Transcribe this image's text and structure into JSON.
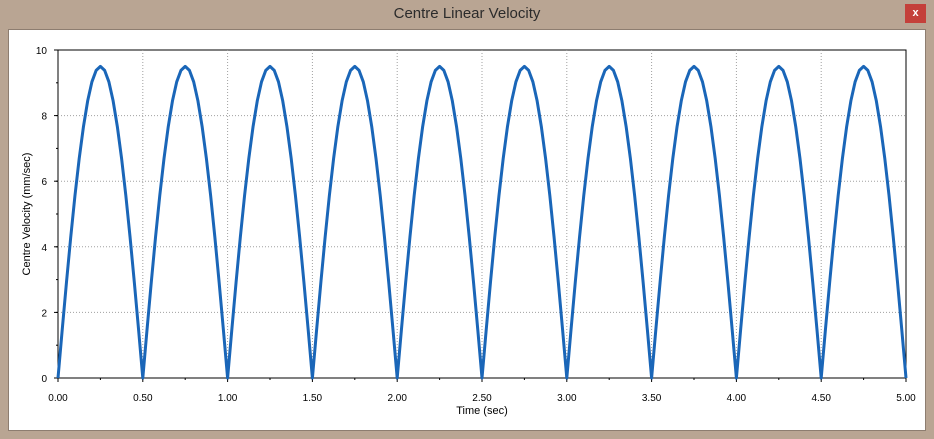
{
  "window": {
    "title": "Centre Linear Velocity",
    "close_label": "x"
  },
  "chart_data": {
    "type": "line",
    "title": "",
    "xlabel": "Time (sec)",
    "ylabel": "Centre Velocity (mm/sec)",
    "xlim": [
      0,
      5
    ],
    "ylim": [
      0,
      10
    ],
    "grid": true,
    "legend": "none",
    "x_ticks": [
      "0.00",
      "0.50",
      "1.00",
      "1.50",
      "2.00",
      "2.50",
      "3.00",
      "3.50",
      "4.00",
      "4.50",
      "5.00"
    ],
    "y_ticks": [
      "0",
      "2",
      "4",
      "6",
      "8",
      "10"
    ],
    "series": [
      {
        "color": "#1a66b8",
        "x": [
          0,
          0.025,
          0.05,
          0.075,
          0.1,
          0.125,
          0.15,
          0.175,
          0.2,
          0.225,
          0.25,
          0.275,
          0.3,
          0.325,
          0.35,
          0.375,
          0.4,
          0.425,
          0.45,
          0.475,
          0.5,
          0.525,
          0.55,
          0.575,
          0.6,
          0.625,
          0.65,
          0.675,
          0.7,
          0.725,
          0.75,
          0.775,
          0.8,
          0.825,
          0.85,
          0.875,
          0.9,
          0.925,
          0.95,
          0.975,
          1.0,
          1.025,
          1.05,
          1.075,
          1.1,
          1.125,
          1.15,
          1.175,
          1.2,
          1.225,
          1.25,
          1.275,
          1.3,
          1.325,
          1.35,
          1.375,
          1.4,
          1.425,
          1.45,
          1.475,
          1.5,
          1.525,
          1.55,
          1.575,
          1.6,
          1.625,
          1.65,
          1.675,
          1.7,
          1.725,
          1.75,
          1.775,
          1.8,
          1.825,
          1.85,
          1.875,
          1.9,
          1.925,
          1.95,
          1.975,
          2.0,
          2.025,
          2.05,
          2.075,
          2.1,
          2.125,
          2.15,
          2.175,
          2.2,
          2.225,
          2.25,
          2.275,
          2.3,
          2.325,
          2.35,
          2.375,
          2.4,
          2.425,
          2.45,
          2.475,
          2.5,
          2.525,
          2.55,
          2.575,
          2.6,
          2.625,
          2.65,
          2.675,
          2.7,
          2.725,
          2.75,
          2.775,
          2.8,
          2.825,
          2.85,
          2.875,
          2.9,
          2.925,
          2.95,
          2.975,
          3.0,
          3.025,
          3.05,
          3.075,
          3.1,
          3.125,
          3.15,
          3.175,
          3.2,
          3.225,
          3.25,
          3.275,
          3.3,
          3.325,
          3.35,
          3.375,
          3.4,
          3.425,
          3.45,
          3.475,
          3.5,
          3.525,
          3.55,
          3.575,
          3.6,
          3.625,
          3.65,
          3.675,
          3.7,
          3.725,
          3.75,
          3.775,
          3.8,
          3.825,
          3.85,
          3.875,
          3.9,
          3.925,
          3.95,
          3.975,
          4.0,
          4.025,
          4.05,
          4.075,
          4.1,
          4.125,
          4.15,
          4.175,
          4.2,
          4.225,
          4.25,
          4.275,
          4.3,
          4.325,
          4.35,
          4.375,
          4.4,
          4.425,
          4.45,
          4.475,
          4.5,
          4.525,
          4.55,
          4.575,
          4.6,
          4.625,
          4.65,
          4.675,
          4.7,
          4.725,
          4.75,
          4.775,
          4.8,
          4.825,
          4.85,
          4.875,
          4.9,
          4.925,
          4.95,
          4.975,
          5.0
        ],
        "y": [
          0.0,
          1.48,
          2.92,
          4.29,
          5.56,
          6.69,
          7.66,
          8.45,
          9.03,
          9.38,
          9.5,
          9.38,
          9.03,
          8.45,
          7.66,
          6.69,
          5.56,
          4.29,
          2.92,
          1.48,
          0.0,
          1.48,
          2.92,
          4.29,
          5.56,
          6.69,
          7.66,
          8.45,
          9.03,
          9.38,
          9.5,
          9.38,
          9.03,
          8.45,
          7.66,
          6.69,
          5.56,
          4.29,
          2.92,
          1.48,
          0.0,
          1.48,
          2.92,
          4.29,
          5.56,
          6.69,
          7.66,
          8.45,
          9.03,
          9.38,
          9.5,
          9.38,
          9.03,
          8.45,
          7.66,
          6.69,
          5.56,
          4.29,
          2.92,
          1.48,
          0.0,
          1.48,
          2.92,
          4.29,
          5.56,
          6.69,
          7.66,
          8.45,
          9.03,
          9.38,
          9.5,
          9.38,
          9.03,
          8.45,
          7.66,
          6.69,
          5.56,
          4.29,
          2.92,
          1.48,
          0.0,
          1.48,
          2.92,
          4.29,
          5.56,
          6.69,
          7.66,
          8.45,
          9.03,
          9.38,
          9.5,
          9.38,
          9.03,
          8.45,
          7.66,
          6.69,
          5.56,
          4.29,
          2.92,
          1.48,
          0.0,
          1.48,
          2.92,
          4.29,
          5.56,
          6.69,
          7.66,
          8.45,
          9.03,
          9.38,
          9.5,
          9.38,
          9.03,
          8.45,
          7.66,
          6.69,
          5.56,
          4.29,
          2.92,
          1.48,
          0.0,
          1.48,
          2.92,
          4.29,
          5.56,
          6.69,
          7.66,
          8.45,
          9.03,
          9.38,
          9.5,
          9.38,
          9.03,
          8.45,
          7.66,
          6.69,
          5.56,
          4.29,
          2.92,
          1.48,
          0.0,
          1.48,
          2.92,
          4.29,
          5.56,
          6.69,
          7.66,
          8.45,
          9.03,
          9.38,
          9.5,
          9.38,
          9.03,
          8.45,
          7.66,
          6.69,
          5.56,
          4.29,
          2.92,
          1.48,
          0.0,
          1.48,
          2.92,
          4.29,
          5.56,
          6.69,
          7.66,
          8.45,
          9.03,
          9.38,
          9.5,
          9.38,
          9.03,
          8.45,
          7.66,
          6.69,
          5.56,
          4.29,
          2.92,
          1.48,
          0.0,
          1.48,
          2.92,
          4.29,
          5.56,
          6.69,
          7.66,
          8.45,
          9.03,
          9.38,
          9.5,
          9.38,
          9.03,
          8.45,
          7.66,
          6.69,
          5.56,
          4.29,
          2.92,
          1.48,
          0.0
        ]
      }
    ]
  }
}
